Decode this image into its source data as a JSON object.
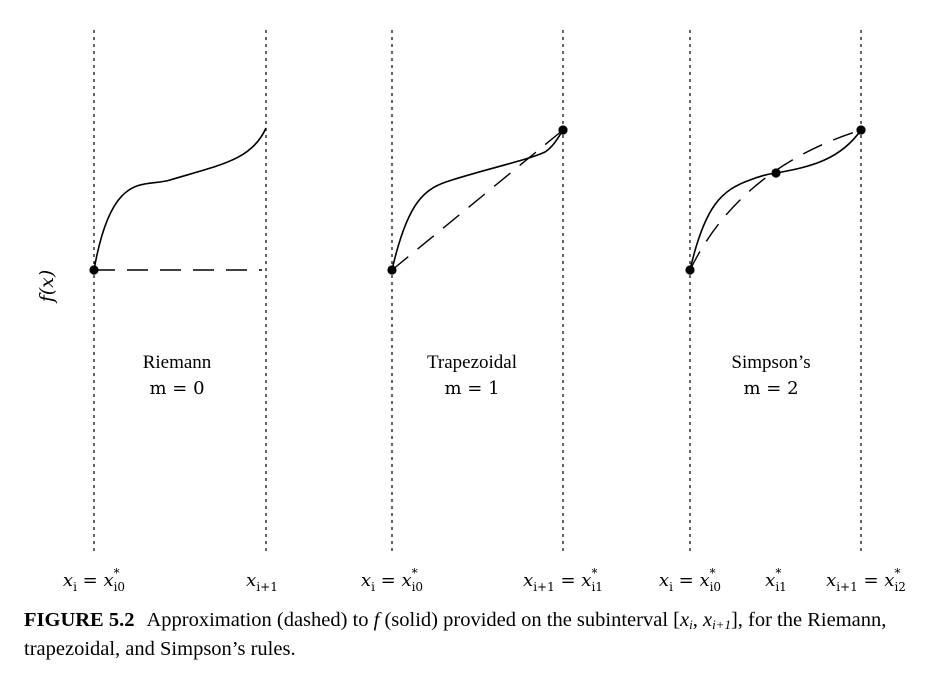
{
  "y_axis_label": "f(x)",
  "panels": [
    {
      "name": "Riemann",
      "m_text": "m = 0",
      "x_labels": [
        {
          "base": "x",
          "sub": "i",
          "eq": " = ",
          "base2": "x",
          "sup2": "*",
          "sub2": "i0"
        },
        {
          "base": "x",
          "sub": "i+1"
        }
      ]
    },
    {
      "name": "Trapezoidal",
      "m_text": "m = 1",
      "x_labels": [
        {
          "base": "x",
          "sub": "i",
          "eq": " = ",
          "base2": "x",
          "sup2": "*",
          "sub2": "i0"
        },
        {
          "base": "x",
          "sub": "i+1",
          "eq": " = ",
          "base2": "x",
          "sup2": "*",
          "sub2": "i1"
        }
      ]
    },
    {
      "name": "Simpson’s",
      "m_text": "m = 2",
      "x_labels": [
        {
          "base": "x",
          "sub": "i",
          "eq": " = ",
          "base2": "x",
          "sup2": "*",
          "sub2": "i0"
        },
        {
          "base": "x",
          "sup": "*",
          "sub": "i1"
        },
        {
          "base": "x",
          "sub": "i+1",
          "eq": " = ",
          "base2": "x",
          "sup2": "*",
          "sub2": "i2"
        }
      ]
    }
  ],
  "caption": {
    "label": "FIGURE 5.2",
    "text_before_f": "Approximation (dashed) to ",
    "f": "f",
    "text_after_f": " (solid) provided on the subinterval [",
    "xi": "x",
    "xi_sub": "i",
    "comma": ", ",
    "xi1": "x",
    "xi1_sub": "i+1",
    "text_end": "], for the Riemann, trapezoidal, and Simpson’s rules."
  },
  "colors": {
    "line": "#000000",
    "background": "#ffffff"
  }
}
